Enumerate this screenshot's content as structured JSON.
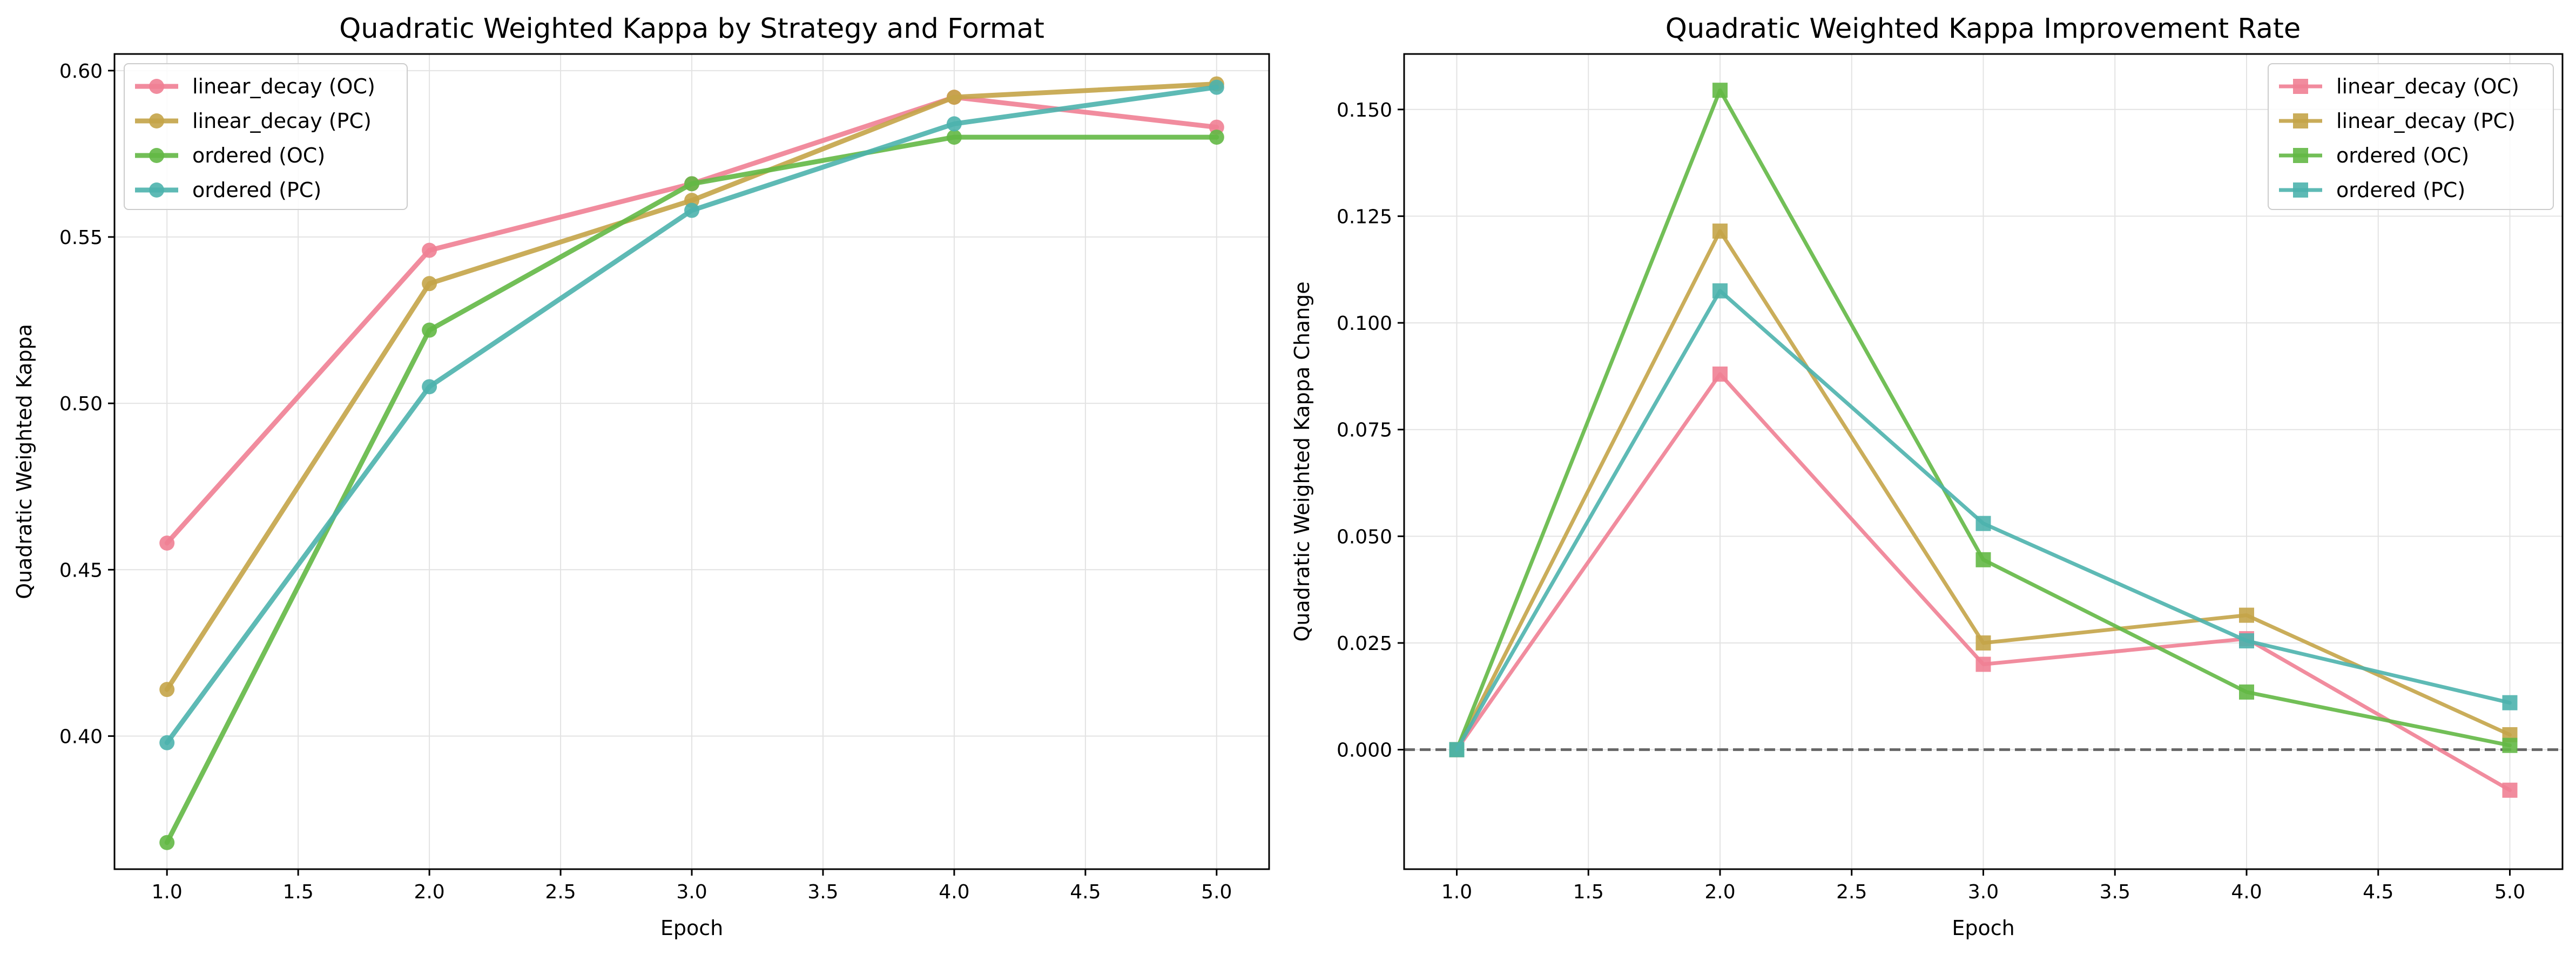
{
  "chart_data": [
    {
      "type": "line",
      "title": "Quadratic Weighted Kappa by Strategy and Format",
      "xlabel": "Epoch",
      "ylabel": "Quadratic Weighted Kappa",
      "xlim": [
        0.8,
        5.2
      ],
      "ylim": [
        0.36,
        0.605
      ],
      "xticks": [
        1.0,
        1.5,
        2.0,
        2.5,
        3.0,
        3.5,
        4.0,
        4.5,
        5.0
      ],
      "xtick_labels": [
        "1.0",
        "1.5",
        "2.0",
        "2.5",
        "3.0",
        "3.5",
        "4.0",
        "4.5",
        "5.0"
      ],
      "yticks": [
        0.4,
        0.45,
        0.5,
        0.55,
        0.6
      ],
      "ytick_labels": [
        "0.40",
        "0.45",
        "0.50",
        "0.55",
        "0.60"
      ],
      "grid": true,
      "legend_position": "top-left",
      "marker": "circle",
      "x": [
        1,
        2,
        3,
        4,
        5
      ],
      "series": [
        {
          "name": "linear_decay (OC)",
          "color": "#f07f94",
          "values": [
            0.458,
            0.546,
            0.566,
            0.592,
            0.583
          ]
        },
        {
          "name": "linear_decay (PC)",
          "color": "#c4a448",
          "values": [
            0.414,
            0.536,
            0.561,
            0.592,
            0.596
          ]
        },
        {
          "name": "ordered (OC)",
          "color": "#63b845",
          "values": [
            0.368,
            0.522,
            0.566,
            0.58,
            0.58
          ]
        },
        {
          "name": "ordered (PC)",
          "color": "#4db3ad",
          "values": [
            0.398,
            0.505,
            0.558,
            0.584,
            0.595
          ]
        }
      ]
    },
    {
      "type": "line",
      "title": "Quadratic Weighted Kappa Improvement Rate",
      "xlabel": "Epoch",
      "ylabel": "Quadratic Weighted Kappa Change",
      "xlim": [
        0.8,
        5.2
      ],
      "ylim": [
        -0.028,
        0.163
      ],
      "xticks": [
        1.0,
        1.5,
        2.0,
        2.5,
        3.0,
        3.5,
        4.0,
        4.5,
        5.0
      ],
      "xtick_labels": [
        "1.0",
        "1.5",
        "2.0",
        "2.5",
        "3.0",
        "3.5",
        "4.0",
        "4.5",
        "5.0"
      ],
      "yticks": [
        0.0,
        0.025,
        0.05,
        0.075,
        0.1,
        0.125,
        0.15
      ],
      "ytick_labels": [
        "0.000",
        "0.025",
        "0.050",
        "0.075",
        "0.100",
        "0.125",
        "0.150"
      ],
      "grid": true,
      "legend_position": "top-right",
      "marker": "square",
      "reference_line_y": 0,
      "x": [
        1,
        2,
        3,
        4,
        5
      ],
      "series": [
        {
          "name": "linear_decay (OC)",
          "color": "#f07f94",
          "values": [
            0.0,
            0.088,
            0.02,
            0.026,
            -0.0095
          ]
        },
        {
          "name": "linear_decay (PC)",
          "color": "#c4a448",
          "values": [
            0.0,
            0.1215,
            0.025,
            0.0315,
            0.0035
          ]
        },
        {
          "name": "ordered (OC)",
          "color": "#63b845",
          "values": [
            0.0,
            0.1545,
            0.0445,
            0.0135,
            0.001
          ]
        },
        {
          "name": "ordered (PC)",
          "color": "#4db3ad",
          "values": [
            0.0,
            0.1075,
            0.053,
            0.0255,
            0.011
          ]
        }
      ]
    }
  ]
}
